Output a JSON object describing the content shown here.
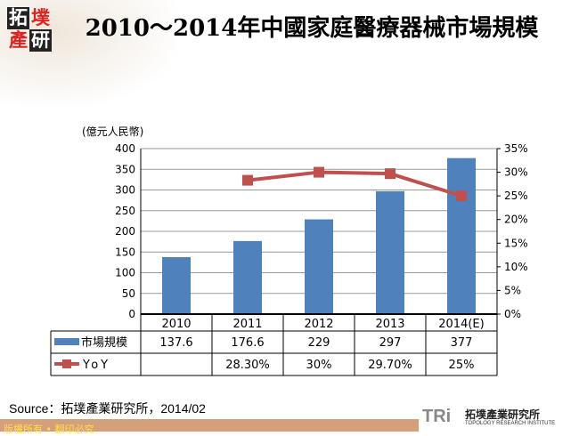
{
  "logo": {
    "chars": [
      "拓",
      "墣",
      "產",
      "研"
    ]
  },
  "chart_data": {
    "type": "bar+line",
    "title": "2010～2014年中國家庭醫療器械市場規模",
    "ylabel": "(億元人民幣)",
    "categories": [
      "2010",
      "2011",
      "2012",
      "2013",
      "2014(E)"
    ],
    "y_ticks": [
      "0",
      "50",
      "100",
      "150",
      "200",
      "250",
      "300",
      "350",
      "400"
    ],
    "y2_ticks": [
      "0%",
      "5%",
      "10%",
      "15%",
      "20%",
      "25%",
      "30%",
      "35%"
    ],
    "ylim": [
      0,
      400
    ],
    "y2lim": [
      0,
      35
    ],
    "grid": true,
    "legend": "data-table",
    "series": [
      {
        "name": "市場規模",
        "type": "bar",
        "color": "#4f81bd",
        "values": [
          137.6,
          176.6,
          229,
          297,
          377
        ],
        "labels": [
          "137.6",
          "176.6",
          "229",
          "297",
          "377"
        ]
      },
      {
        "name": "YoY",
        "type": "line",
        "axis": "right",
        "color": "#c0504d",
        "values": [
          null,
          28.3,
          30,
          29.7,
          25
        ],
        "labels": [
          "",
          "28.30%",
          "30%",
          "29.70%",
          "25%"
        ]
      }
    ]
  },
  "source": "Source：拓墣產業研究所，2014/02",
  "footer": "版權所有 • 翻印必究",
  "brand": {
    "mark": "TRi",
    "zh": "拓墣產業研究所",
    "en": "TOPOLOGY RESEARCH INSTITUTE"
  }
}
